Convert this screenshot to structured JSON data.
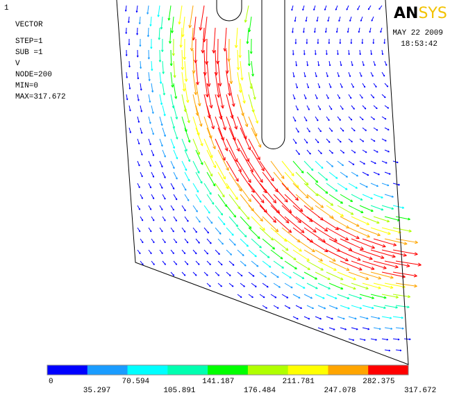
{
  "window_number": "1",
  "info": [
    "VECTOR",
    "STEP=1",
    "SUB =1",
    "V",
    "NODE=200",
    "MIN=0",
    "MAX=317.672"
  ],
  "logo": {
    "left": "AN",
    "right": "SYS"
  },
  "date": "MAY 22 2009",
  "time": "18:53:42",
  "legend": {
    "ticks": [
      0,
      35.297,
      70.594,
      105.891,
      141.187,
      176.484,
      211.781,
      247.078,
      282.375,
      317.672
    ],
    "colors": [
      "#0000ff",
      "#1a9cff",
      "#00ffff",
      "#00ffb0",
      "#00ff00",
      "#b0ff00",
      "#ffff00",
      "#ffa500",
      "#ff0000"
    ]
  }
}
